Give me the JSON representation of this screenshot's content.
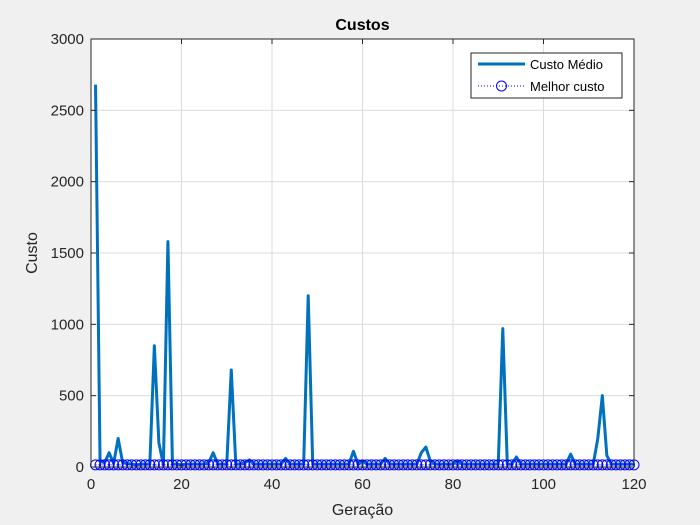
{
  "chart_data": {
    "type": "line",
    "title": "Custos",
    "xlabel": "Geração",
    "ylabel": "Custo",
    "xlim": [
      0,
      120
    ],
    "ylim": [
      0,
      3000
    ],
    "xticks": [
      0,
      20,
      40,
      60,
      80,
      100,
      120
    ],
    "yticks": [
      0,
      500,
      1000,
      1500,
      2000,
      2500,
      3000
    ],
    "grid": true,
    "legend_position": "top-right",
    "colors": {
      "mean": "#0072bd",
      "best": "#0000ff",
      "axes": "#262626",
      "grid": "#dcdcdc"
    },
    "x": [
      1,
      2,
      3,
      4,
      5,
      6,
      7,
      8,
      9,
      10,
      11,
      12,
      13,
      14,
      15,
      16,
      17,
      18,
      19,
      20,
      21,
      22,
      23,
      24,
      25,
      26,
      27,
      28,
      29,
      30,
      31,
      32,
      33,
      34,
      35,
      36,
      37,
      38,
      39,
      40,
      41,
      42,
      43,
      44,
      45,
      46,
      47,
      48,
      49,
      50,
      51,
      52,
      53,
      54,
      55,
      56,
      57,
      58,
      59,
      60,
      61,
      62,
      63,
      64,
      65,
      66,
      67,
      68,
      69,
      70,
      71,
      72,
      73,
      74,
      75,
      76,
      77,
      78,
      79,
      80,
      81,
      82,
      83,
      84,
      85,
      86,
      87,
      88,
      89,
      90,
      91,
      92,
      93,
      94,
      95,
      96,
      97,
      98,
      99,
      100,
      101,
      102,
      103,
      104,
      105,
      106,
      107,
      108,
      109,
      110,
      111,
      112,
      113,
      114,
      115,
      116,
      117,
      118,
      119,
      120
    ],
    "series": [
      {
        "name": "Custo Médio",
        "style": "line",
        "values": [
          2680,
          40,
          30,
          100,
          25,
          200,
          30,
          25,
          20,
          15,
          20,
          20,
          20,
          850,
          170,
          15,
          1580,
          20,
          20,
          15,
          20,
          20,
          20,
          20,
          20,
          30,
          100,
          20,
          20,
          20,
          680,
          20,
          20,
          30,
          50,
          20,
          20,
          20,
          20,
          20,
          20,
          20,
          60,
          20,
          20,
          20,
          20,
          1200,
          20,
          20,
          20,
          20,
          20,
          20,
          20,
          20,
          20,
          110,
          20,
          40,
          20,
          20,
          20,
          20,
          60,
          20,
          20,
          20,
          20,
          20,
          20,
          20,
          100,
          140,
          40,
          20,
          20,
          20,
          20,
          20,
          40,
          20,
          20,
          20,
          20,
          20,
          20,
          20,
          20,
          20,
          970,
          20,
          20,
          70,
          20,
          20,
          20,
          20,
          20,
          20,
          20,
          20,
          20,
          20,
          20,
          90,
          20,
          20,
          20,
          20,
          20,
          200,
          500,
          80,
          20,
          20,
          20,
          20,
          20,
          20
        ]
      },
      {
        "name": "Melhor custo",
        "style": "dotted-circle",
        "values": [
          15,
          15,
          15,
          15,
          15,
          15,
          15,
          15,
          15,
          15,
          15,
          15,
          15,
          15,
          15,
          15,
          15,
          15,
          15,
          15,
          15,
          15,
          15,
          15,
          15,
          15,
          15,
          15,
          15,
          15,
          15,
          15,
          15,
          15,
          15,
          15,
          15,
          15,
          15,
          15,
          15,
          15,
          15,
          15,
          15,
          15,
          15,
          15,
          15,
          15,
          15,
          15,
          15,
          15,
          15,
          15,
          15,
          15,
          15,
          15,
          15,
          15,
          15,
          15,
          15,
          15,
          15,
          15,
          15,
          15,
          15,
          15,
          15,
          15,
          15,
          15,
          15,
          15,
          15,
          15,
          15,
          15,
          15,
          15,
          15,
          15,
          15,
          15,
          15,
          15,
          15,
          15,
          15,
          15,
          15,
          15,
          15,
          15,
          15,
          15,
          15,
          15,
          15,
          15,
          15,
          15,
          15,
          15,
          15,
          15,
          15,
          15,
          15,
          15,
          15,
          15,
          15,
          15,
          15,
          15
        ]
      }
    ]
  }
}
